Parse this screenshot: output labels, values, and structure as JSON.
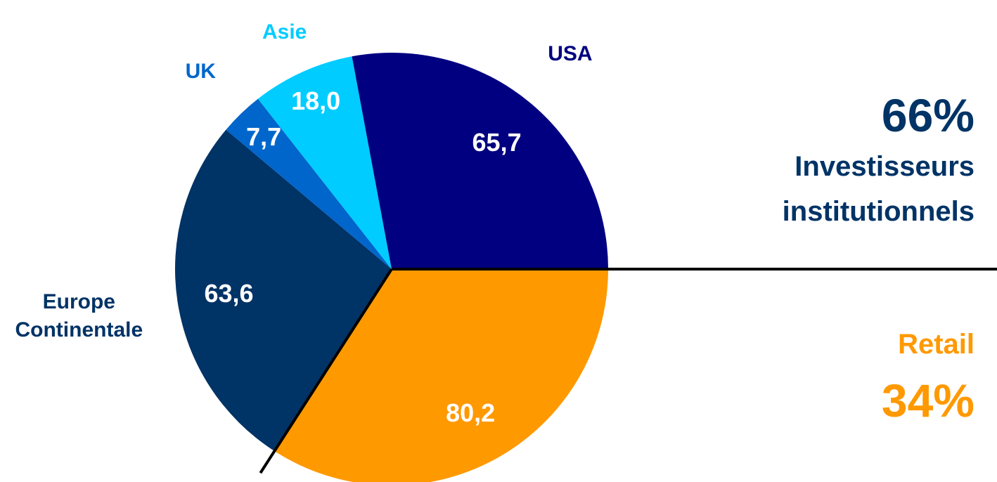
{
  "chart_data": {
    "type": "pie",
    "categories": [
      null,
      "Europe Continentale",
      "UK",
      "Asie",
      "USA"
    ],
    "values": [
      80.2,
      63.6,
      7.7,
      18.0,
      65.7
    ],
    "value_labels": [
      "80,2",
      "63,6",
      "7,7",
      "18,0",
      "65,7"
    ],
    "colors": [
      "#ff9900",
      "#003366",
      "#0066cc",
      "#00ccff",
      "#000080"
    ],
    "label_colors": [
      "#ff9900",
      "#003366",
      "#0066cc",
      "#00ccff",
      "#000080"
    ],
    "start_angle": 0,
    "direction": "clockwise",
    "groups": [
      {
        "name": "Investisseurs institutionnels",
        "value": 66,
        "value_label": "66%",
        "color": "#003366"
      },
      {
        "name": "Retail",
        "value": 34,
        "value_label": "34%",
        "color": "#ff9900"
      }
    ]
  }
}
